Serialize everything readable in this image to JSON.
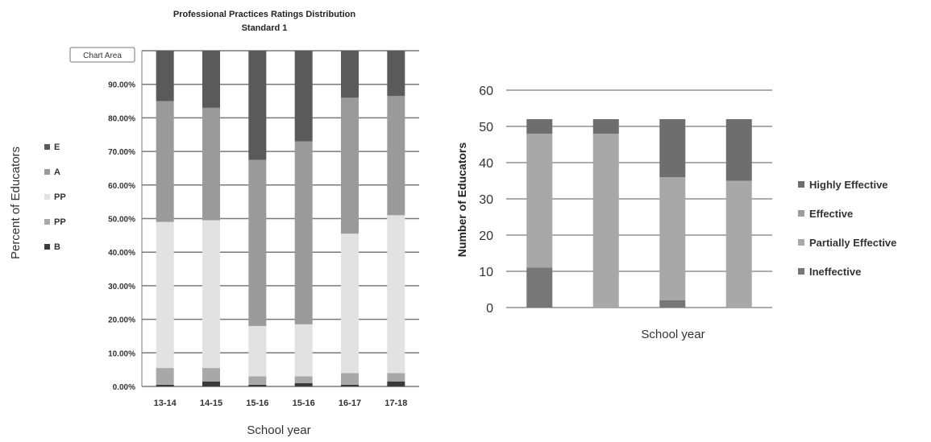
{
  "colors": {
    "E": "#5a5a5a",
    "A": "#9a9a9a",
    "PP_light": "#e2e2e2",
    "PP": "#a8a8a8",
    "B": "#3a3a3a",
    "highly_effective": "#6e6e6e",
    "effective": "#9c9c9c",
    "partially_effective": "#a8a8a8",
    "ineffective": "#777777",
    "grid": "#7a7a7a"
  },
  "chart_data": [
    {
      "type": "bar",
      "stacked": true,
      "title": "Professional Practices Ratings Distribution",
      "subtitle": "Standard 1",
      "xlabel": "School year",
      "ylabel": "Percent of Educators",
      "tooltip": "Chart Area",
      "categories": [
        "13-14",
        "14-15",
        "15-16",
        "15-16",
        "16-17",
        "17-18"
      ],
      "ylim": [
        0,
        1
      ],
      "yticks": [
        "0.00%",
        "10.00%",
        "20.00%",
        "30.00%",
        "40.00%",
        "50.00%",
        "60.00%",
        "70.00%",
        "80.00%",
        "90.00%"
      ],
      "legend_position": "left",
      "series": [
        {
          "name": "B",
          "color_key": "B",
          "values": [
            0.005,
            0.015,
            0.005,
            0.01,
            0.005,
            0.015
          ]
        },
        {
          "name": "PP",
          "color_key": "PP",
          "values": [
            0.05,
            0.04,
            0.025,
            0.02,
            0.035,
            0.025
          ]
        },
        {
          "name": "PP",
          "color_key": "PP_light",
          "values": [
            0.435,
            0.44,
            0.15,
            0.155,
            0.415,
            0.47
          ]
        },
        {
          "name": "A",
          "color_key": "A",
          "values": [
            0.36,
            0.335,
            0.495,
            0.545,
            0.405,
            0.355
          ]
        },
        {
          "name": "E",
          "color_key": "E",
          "values": [
            0.15,
            0.17,
            0.325,
            0.27,
            0.14,
            0.135
          ]
        }
      ]
    },
    {
      "type": "bar",
      "stacked": true,
      "title": "",
      "xlabel": "School year",
      "ylabel": "Number of Educators",
      "categories": [
        "",
        "",
        "",
        ""
      ],
      "ylim": [
        0,
        60
      ],
      "yticks": [
        "0",
        "10",
        "20",
        "30",
        "40",
        "50",
        "60"
      ],
      "legend_position": "right",
      "series": [
        {
          "name": "Ineffective",
          "color_key": "ineffective",
          "values": [
            11,
            0,
            2,
            0
          ]
        },
        {
          "name": "Partially Effective",
          "color_key": "partially_effective",
          "values": [
            37,
            48,
            34,
            35
          ]
        },
        {
          "name": "Effective",
          "color_key": "effective",
          "values": [
            0,
            0,
            0,
            0
          ]
        },
        {
          "name": "Highly Effective",
          "color_key": "highly_effective",
          "values": [
            4,
            4,
            16,
            17
          ]
        }
      ]
    }
  ]
}
